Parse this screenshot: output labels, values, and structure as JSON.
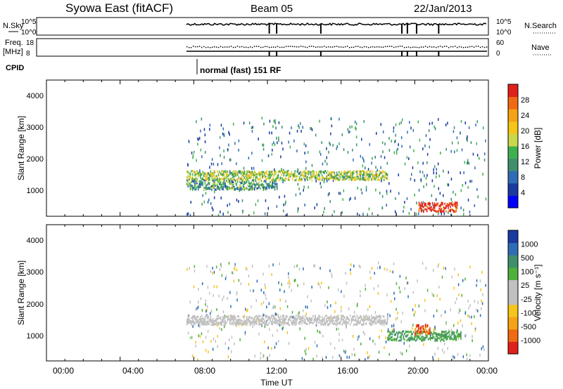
{
  "header": {
    "title": "Syowa East (fitACF)",
    "beam": "Beam 05",
    "date": "22/Jan/2013"
  },
  "strip_labels": {
    "nsky": "N.Sky",
    "nsky_top": "10^5",
    "nsky_bottom": "10^0",
    "nsearch": "N.Search",
    "nsearch_top": "10^5",
    "nsearch_bottom": "10^0",
    "freq": "Freq.",
    "freq_unit": "[MHz]",
    "freq_top": "18",
    "freq_bottom": "8",
    "nave": "Nave",
    "nave_top": "60",
    "nave_bottom": "0",
    "cpid": "CPID",
    "cpid_text": "normal (fast) 151 RF"
  },
  "panels": {
    "power": {
      "ylabel": "Slant Range [km]",
      "yticks": [
        "1000",
        "2000",
        "3000",
        "4000"
      ],
      "cbar_label": "Power [dB]",
      "cbar_ticks": [
        "4",
        "8",
        "12",
        "16",
        "20",
        "24",
        "28"
      ]
    },
    "velocity": {
      "ylabel": "Slant Range [km]",
      "yticks": [
        "1000",
        "2000",
        "3000",
        "4000"
      ],
      "cbar_label": "Velocity [m s⁻¹]",
      "cbar_ticks": [
        "-1000",
        "-500",
        "-100",
        "-25",
        "25",
        "100",
        "500",
        "1000"
      ]
    }
  },
  "xaxis": {
    "label": "Time UT",
    "ticks": [
      "00:00",
      "04:00",
      "08:00",
      "12:00",
      "16:00",
      "20:00",
      "00:00"
    ]
  },
  "colors": {
    "power_scale": [
      "#0000ff",
      "#1a3aa0",
      "#2e6db6",
      "#3f8f6c",
      "#3fb04f",
      "#c8d84a",
      "#f5c518",
      "#f5a214",
      "#ef6a12",
      "#e0201a"
    ],
    "velocity_scale": [
      "#e0201a",
      "#ef6a12",
      "#f5a214",
      "#f5c518",
      "#c0c0c0",
      "#c0c0c0",
      "#4fb03a",
      "#3f8f6c",
      "#2e6db6",
      "#1a3aa0"
    ]
  },
  "chart_data": [
    {
      "type": "heatmap",
      "title": "Power",
      "xlabel": "Time UT",
      "ylabel": "Slant Range [km]",
      "xlim": [
        0,
        24
      ],
      "ylim": [
        180,
        4500
      ],
      "colorbar": {
        "label": "Power [dB]",
        "range": [
          0,
          30
        ]
      },
      "data_start_hour": 7.6,
      "bands": [
        {
          "t0": 7.6,
          "t1": 18.5,
          "range_km": 1500,
          "value": 14
        },
        {
          "t0": 7.6,
          "t1": 12.5,
          "range_km": 1200,
          "value": 10
        },
        {
          "t0": 20.2,
          "t1": 22.3,
          "range_km": 500,
          "value": 27
        }
      ]
    },
    {
      "type": "heatmap",
      "title": "Velocity",
      "xlabel": "Time UT",
      "ylabel": "Slant Range [km]",
      "xlim": [
        0,
        24
      ],
      "ylim": [
        180,
        4500
      ],
      "colorbar": {
        "label": "Velocity [m s⁻¹]",
        "range": [
          -1000,
          1000
        ]
      },
      "data_start_hour": 7.6,
      "bands": [
        {
          "t0": 7.6,
          "t1": 18.5,
          "range_km": 1500,
          "value": 0
        },
        {
          "t0": 18.5,
          "t1": 22.5,
          "range_km": 1000,
          "value": 120
        },
        {
          "t0": 20.0,
          "t1": 20.8,
          "range_km": 1200,
          "value": -600
        }
      ]
    }
  ]
}
